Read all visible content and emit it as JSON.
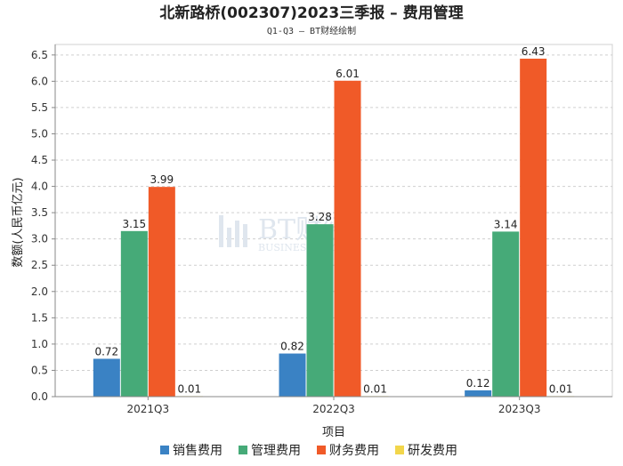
{
  "chart_data": {
    "type": "bar",
    "title": "北新路桥(002307)2023三季报 – 费用管理",
    "subtitle": "Q1-Q3 – BT财经绘制",
    "xlabel": "项目",
    "ylabel": "数额(人民币亿元)",
    "ylim": [
      0,
      6.7
    ],
    "yticks": [
      0.0,
      0.5,
      1.0,
      1.5,
      2.0,
      2.5,
      3.0,
      3.5,
      4.0,
      4.5,
      5.0,
      5.5,
      6.0,
      6.5
    ],
    "grid": true,
    "legend_position": "bottom",
    "categories": [
      "2021Q3",
      "2022Q3",
      "2023Q3"
    ],
    "series": [
      {
        "name": "销售费用",
        "color": "#3a82c4",
        "values": [
          0.72,
          0.82,
          0.12
        ]
      },
      {
        "name": "管理费用",
        "color": "#46aa78",
        "values": [
          3.15,
          3.28,
          3.14
        ]
      },
      {
        "name": "财务费用",
        "color": "#f05a28",
        "values": [
          3.99,
          6.01,
          6.43
        ]
      },
      {
        "name": "研发费用",
        "color": "#f2d64b",
        "values": [
          0.01,
          0.01,
          0.01
        ]
      }
    ],
    "watermark": {
      "main": "BT财经",
      "sub": "BUSINESS TIMES"
    }
  }
}
